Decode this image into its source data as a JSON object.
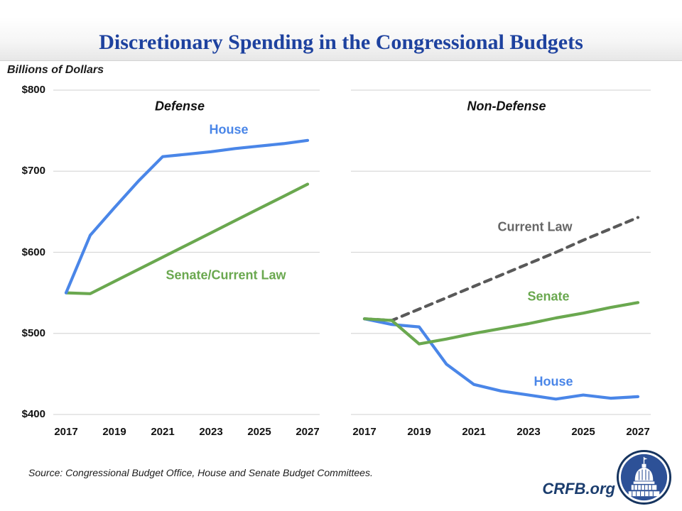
{
  "header": {
    "title": "Discretionary Spending in the Congressional Budgets"
  },
  "y_axis_label": "Billions of Dollars",
  "footer": {
    "source": "Source: Congressional Budget Office, House and Senate Budget Committees.",
    "brand": "CRFB.org"
  },
  "colors": {
    "title_blue": "#1e429f",
    "house_blue": "#4a86e8",
    "senate_green": "#6aa84f",
    "current_law_gray": "#595959",
    "label_gray": "#666666",
    "gridline": "#d9d9d9",
    "brand_navy": "#1b3d6e",
    "logo_fill": "#2d5197"
  },
  "chart_data": [
    {
      "type": "line",
      "title": "Defense",
      "x": [
        2017,
        2018,
        2019,
        2020,
        2021,
        2022,
        2023,
        2024,
        2025,
        2026,
        2027
      ],
      "x_tick_labels": [
        "2017",
        "2019",
        "2021",
        "2023",
        "2025",
        "2027"
      ],
      "ylim": [
        400,
        800
      ],
      "y_ticks": [
        400,
        500,
        600,
        700,
        800
      ],
      "y_tick_labels": [
        "$400",
        "$500",
        "$600",
        "$700",
        "$800"
      ],
      "grid": true,
      "legend_position": "inline-labels",
      "series": [
        {
          "name": "Senate/Current Law",
          "style": "solid",
          "color": "#6aa84f",
          "values": [
            550,
            549,
            564,
            579,
            594,
            609,
            624,
            639,
            654,
            669,
            684
          ]
        },
        {
          "name": "House",
          "style": "solid",
          "color": "#4a86e8",
          "values": [
            550,
            621,
            655,
            688,
            718,
            721,
            724,
            728,
            731,
            734,
            738
          ]
        }
      ]
    },
    {
      "type": "line",
      "title": "Non-Defense",
      "x": [
        2017,
        2018,
        2019,
        2020,
        2021,
        2022,
        2023,
        2024,
        2025,
        2026,
        2027
      ],
      "x_tick_labels": [
        "2017",
        "2019",
        "2021",
        "2023",
        "2025",
        "2027"
      ],
      "ylim": [
        400,
        800
      ],
      "y_ticks": [
        400,
        500,
        600,
        700,
        800
      ],
      "y_tick_labels": [
        "$400",
        "$500",
        "$600",
        "$700",
        "$800"
      ],
      "grid": true,
      "legend_position": "inline-labels",
      "series": [
        {
          "name": "Current Law",
          "style": "dashed",
          "color": "#595959",
          "label_color": "#666666",
          "values": [
            518,
            516,
            530,
            544,
            558,
            572,
            586,
            600,
            615,
            629,
            643
          ]
        },
        {
          "name": "House",
          "style": "solid",
          "color": "#4a86e8",
          "values": [
            518,
            511,
            508,
            462,
            437,
            429,
            424,
            419,
            424,
            420,
            422
          ]
        },
        {
          "name": "Senate",
          "style": "solid",
          "color": "#6aa84f",
          "values": [
            518,
            516,
            487,
            493,
            500,
            506,
            512,
            519,
            525,
            532,
            538
          ]
        }
      ]
    }
  ]
}
